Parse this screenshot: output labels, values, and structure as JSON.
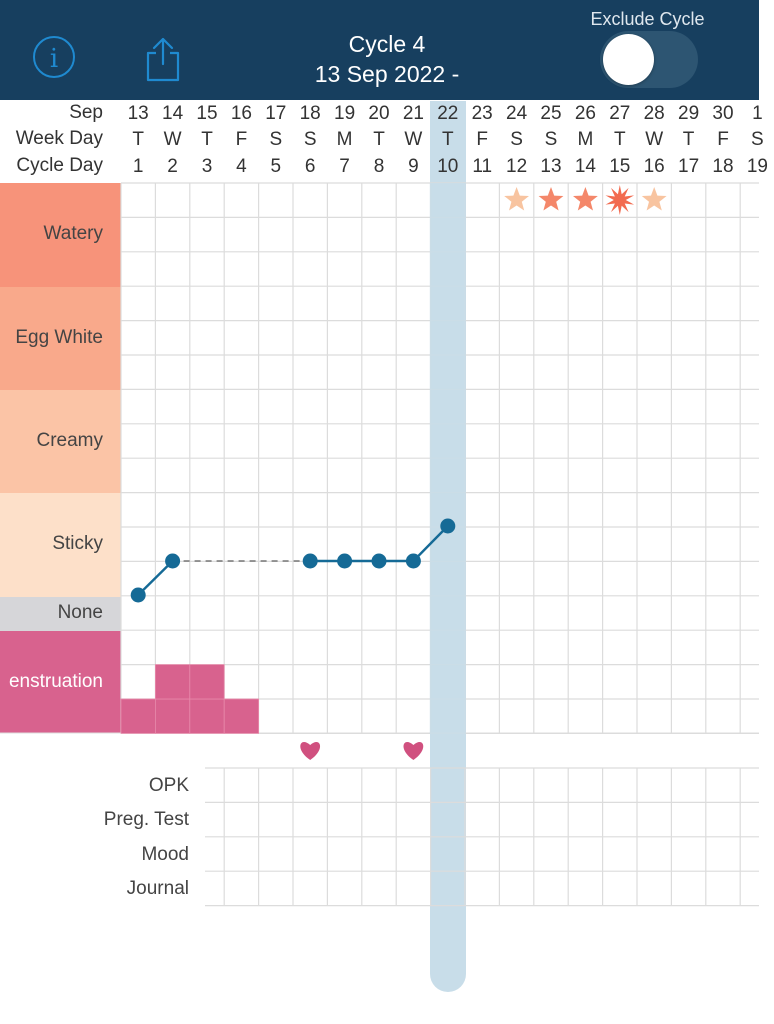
{
  "header": {
    "cycle_title": "Cycle 4",
    "cycle_dates": "13 Sep 2022 -",
    "exclude_label": "Exclude Cycle",
    "exclude_on": false,
    "bg_color": "#173f5f"
  },
  "row_labels": {
    "month": "Sep",
    "week_day": "Week Day",
    "cycle_day": "Cycle Day"
  },
  "days": [
    {
      "date": "13",
      "wd": "T",
      "cd": "1"
    },
    {
      "date": "14",
      "wd": "W",
      "cd": "2"
    },
    {
      "date": "15",
      "wd": "T",
      "cd": "3"
    },
    {
      "date": "16",
      "wd": "F",
      "cd": "4"
    },
    {
      "date": "17",
      "wd": "S",
      "cd": "5"
    },
    {
      "date": "18",
      "wd": "S",
      "cd": "6"
    },
    {
      "date": "19",
      "wd": "M",
      "cd": "7"
    },
    {
      "date": "20",
      "wd": "T",
      "cd": "8"
    },
    {
      "date": "21",
      "wd": "W",
      "cd": "9"
    },
    {
      "date": "22",
      "wd": "T",
      "cd": "10"
    },
    {
      "date": "23",
      "wd": "F",
      "cd": "11"
    },
    {
      "date": "24",
      "wd": "S",
      "cd": "12"
    },
    {
      "date": "25",
      "wd": "S",
      "cd": "13"
    },
    {
      "date": "26",
      "wd": "M",
      "cd": "14"
    },
    {
      "date": "27",
      "wd": "T",
      "cd": "15"
    },
    {
      "date": "28",
      "wd": "W",
      "cd": "16"
    },
    {
      "date": "29",
      "wd": "T",
      "cd": "17"
    },
    {
      "date": "30",
      "wd": "F",
      "cd": "18"
    },
    {
      "date": "1",
      "wd": "S",
      "cd": "19"
    }
  ],
  "today_cycle_day": 10,
  "fertility_stars": [
    {
      "cycle_day": 12,
      "kind": "light"
    },
    {
      "cycle_day": 13,
      "kind": "medium"
    },
    {
      "cycle_day": 14,
      "kind": "medium"
    },
    {
      "cycle_day": 15,
      "kind": "peak"
    },
    {
      "cycle_day": 16,
      "kind": "light"
    }
  ],
  "mucus_bands": [
    {
      "label": "Watery",
      "color": "#f7937a"
    },
    {
      "label": "Egg White",
      "color": "#f9a98b"
    },
    {
      "label": "Creamy",
      "color": "#fbc4a6"
    },
    {
      "label": "Sticky",
      "color": "#fde0c9"
    },
    {
      "label": "None",
      "color": "#d6d6d9"
    }
  ],
  "menstruation": {
    "label": "enstruation",
    "color": "#d8628e",
    "cell_color": "#d8628e",
    "flow": [
      {
        "cycle_day": 1,
        "level": 1
      },
      {
        "cycle_day": 2,
        "level": 2
      },
      {
        "cycle_day": 3,
        "level": 2
      },
      {
        "cycle_day": 4,
        "level": 1
      }
    ]
  },
  "mucus_points": [
    {
      "cycle_day": 1,
      "value": "None"
    },
    {
      "cycle_day": 2,
      "value": "Sticky"
    },
    {
      "cycle_day": 6,
      "value": "Sticky"
    },
    {
      "cycle_day": 7,
      "value": "Sticky"
    },
    {
      "cycle_day": 8,
      "value": "Sticky"
    },
    {
      "cycle_day": 9,
      "value": "Sticky"
    },
    {
      "cycle_day": 10,
      "value": "Sticky"
    }
  ],
  "intercourse_days": [
    6,
    9
  ],
  "bottom_rows": [
    "OPK",
    "Preg. Test",
    "Mood",
    "Journal"
  ],
  "colors": {
    "line": "#156a96",
    "today_highlight": "#c8dde9",
    "grid": "#dcdcdc",
    "heart": "#d0507f",
    "star_light": "#f8c4a0",
    "star_medium": "#f4876a",
    "star_peak": "#f26b50"
  }
}
